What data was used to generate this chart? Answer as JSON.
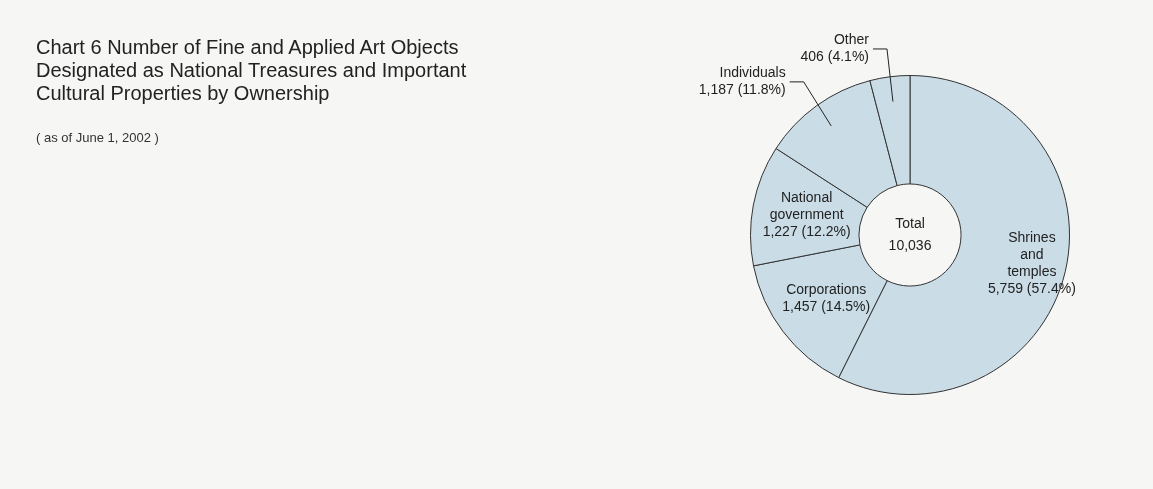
{
  "chart_data": {
    "type": "donut",
    "title": "Chart 6  Number of Fine and Applied Art Objects Designated as National Treasures and Important Cultural Properties by Ownership",
    "subtitle": "( as of June 1, 2002 )",
    "categories": [
      "Shrines and temples",
      "Corporations",
      "National government",
      "Individuals",
      "Other"
    ],
    "values": [
      5759,
      1457,
      1227,
      1187,
      406
    ],
    "value_labels": [
      "5,759 (57.4%)",
      "1,457 (14.5%)",
      "1,227 (12.2%)",
      "1,187 (11.8%)",
      "406 (4.1%)"
    ],
    "colors": [
      "#cadde7",
      "#cadde7",
      "#cadde7",
      "#cadde7",
      "#cadde7"
    ],
    "annotations": [
      "Total",
      "10,036"
    ],
    "legend": false
  }
}
